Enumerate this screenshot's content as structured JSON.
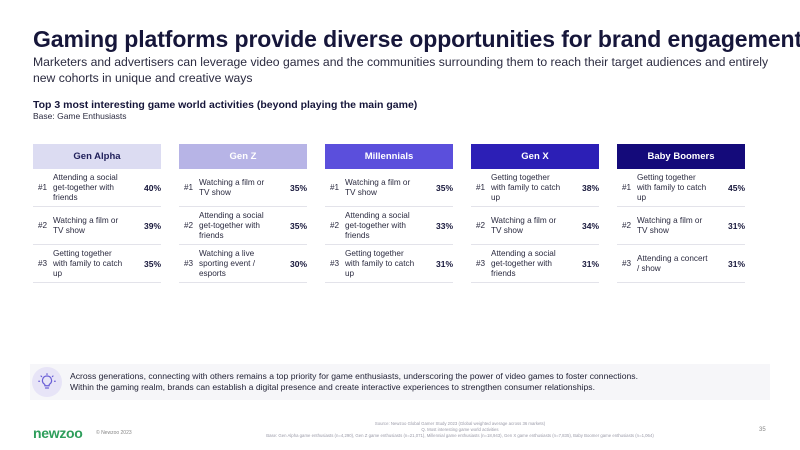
{
  "title": "Gaming platforms provide diverse opportunities for brand engagement",
  "subtitle": "Marketers and advertisers can leverage video games and the communities surrounding them to reach their target audiences and entirely new cohorts in unique and creative ways",
  "chart_title": "Top 3 most interesting game world activities (beyond playing the main game)",
  "chart_base": "Base: Game Enthusiasts",
  "colors": {
    "gen_alpha_header_bg": "#dcdcf2",
    "gen_z_header_bg": "#b7b4e6",
    "millennials_header_bg": "#5b4fdc",
    "gen_x_header_bg": "#2c1fb6",
    "baby_boomers_header_bg": "#140a7a",
    "brand_green": "#2e9e5b"
  },
  "chart_data": {
    "type": "table",
    "columns": [
      {
        "generation": "Gen Alpha",
        "rows": [
          {
            "rank": "#1",
            "activity": "Attending a social get-together with friends",
            "value": "40%"
          },
          {
            "rank": "#2",
            "activity": "Watching a film or TV show",
            "value": "39%"
          },
          {
            "rank": "#3",
            "activity": "Getting together with family to catch up",
            "value": "35%"
          }
        ]
      },
      {
        "generation": "Gen Z",
        "rows": [
          {
            "rank": "#1",
            "activity": "Watching a film or TV show",
            "value": "35%"
          },
          {
            "rank": "#2",
            "activity": "Attending a social get-together with friends",
            "value": "35%"
          },
          {
            "rank": "#3",
            "activity": "Watching a live sporting event / esports",
            "value": "30%"
          }
        ]
      },
      {
        "generation": "Millennials",
        "rows": [
          {
            "rank": "#1",
            "activity": "Watching a film or TV show",
            "value": "35%"
          },
          {
            "rank": "#2",
            "activity": "Attending a social get-together with friends",
            "value": "33%"
          },
          {
            "rank": "#3",
            "activity": "Getting together with family to catch up",
            "value": "31%"
          }
        ]
      },
      {
        "generation": "Gen X",
        "rows": [
          {
            "rank": "#1",
            "activity": "Getting together with family to catch up",
            "value": "38%"
          },
          {
            "rank": "#2",
            "activity": "Watching a film or TV show",
            "value": "34%"
          },
          {
            "rank": "#3",
            "activity": "Attending a social get-together with friends",
            "value": "31%"
          }
        ]
      },
      {
        "generation": "Baby Boomers",
        "rows": [
          {
            "rank": "#1",
            "activity": "Getting together with family to catch up",
            "value": "45%"
          },
          {
            "rank": "#2",
            "activity": "Watching a film or TV show",
            "value": "31%"
          },
          {
            "rank": "#3",
            "activity": "Attending a concert / show",
            "value": "31%"
          }
        ]
      }
    ]
  },
  "callout": {
    "icon": "lightbulb-icon",
    "line1": "Across generations, connecting with others remains a top priority for game enthusiasts, underscoring the power of video games to foster connections.",
    "line2": "Within the gaming realm, brands can establish a digital presence and create interactive experiences to strengthen consumer relationships."
  },
  "footer": {
    "logo": "newzoo",
    "copyright": "© Newzoo 2023",
    "source_line1": "Source: Newzoo Global Gamer Study 2023 (Global weighted average across 36 markets)",
    "source_line2": "Q. Most interesting game world activities",
    "source_line3": "Base: Gen Alpha game enthusiasts (n=4,290), Gen Z game enthusiasts (n=21,071), Millennial game enthusiasts (n=18,943), Gen X game enthusiasts (n=7,835), Baby Boomer game enthusiasts (n=1,064)",
    "page_number": "35"
  }
}
